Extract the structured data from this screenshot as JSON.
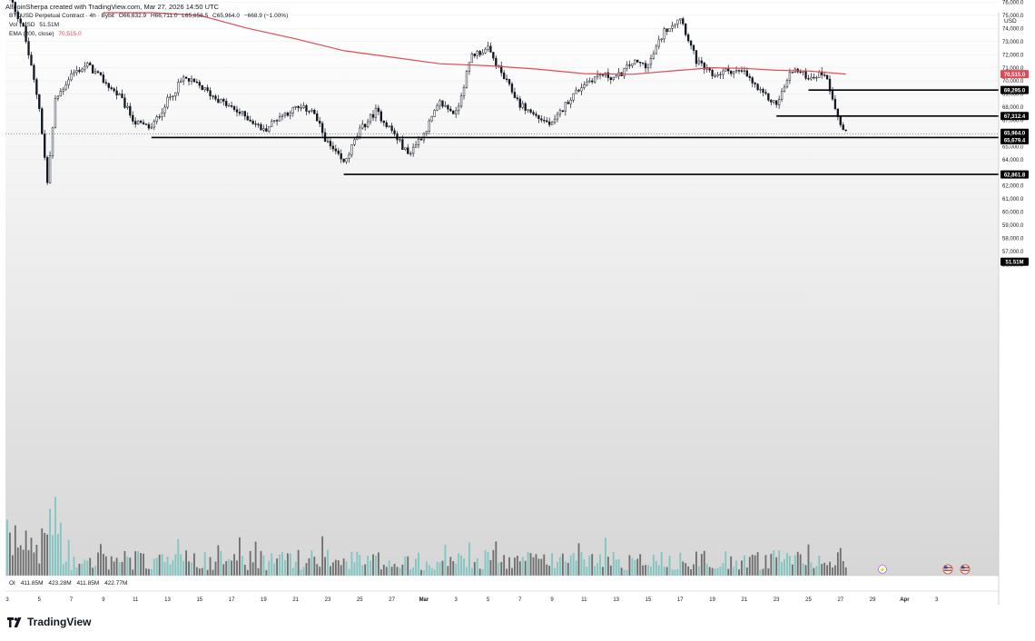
{
  "header": {
    "credit": "AltcoinSherpa created with TradingView.com, Mar 27, 2026 14:50 UTC"
  },
  "legend": {
    "symbol": "BTCUSD Perpetual Contract · 4h · Bybit",
    "open": "O66,632.9",
    "high": "H66,711.0",
    "low": "L65,658.5",
    "close": "C65,964.0",
    "change": "−668.9 (−1.00%)",
    "vol_label": "Vol · USD",
    "vol_value": "51.51M",
    "ema_label": "EMA (200, close)",
    "ema_value": "70,515.0"
  },
  "oi": {
    "label": "OI",
    "values": [
      "411.85M",
      "423.28M",
      "411.85M",
      "422.77M"
    ]
  },
  "brand": {
    "name": "TradingView"
  },
  "axis": {
    "currency": "USD"
  },
  "colors": {
    "ema": "#e04a55",
    "candle": "#131722",
    "volume_up": "#7fc6c2",
    "volume_down": "#6e6e6e",
    "level_line": "#000000",
    "background_top": "#ffffff",
    "background_bottom": "#d8d8d8"
  },
  "chart_data": {
    "type": "candlestick",
    "ylim": [
      55500,
      77500
    ],
    "y_ticks": [
      56000,
      57000,
      58000,
      59000,
      60000,
      61000,
      62000,
      63000,
      64000,
      65000,
      66000,
      67000,
      68000,
      69000,
      70000,
      71000,
      72000,
      73000,
      74000,
      75000,
      76000
    ],
    "x_ticks": [
      "3",
      "5",
      "7",
      "9",
      "11",
      "13",
      "15",
      "17",
      "19",
      "21",
      "23",
      "25",
      "27",
      "Mar",
      "3",
      "5",
      "7",
      "9",
      "11",
      "13",
      "15",
      "17",
      "19",
      "21",
      "23",
      "25",
      "27",
      "29",
      "Apr",
      "3"
    ],
    "price_path": [
      [
        "Feb 3",
        76800
      ],
      [
        "Feb 4",
        74000
      ],
      [
        "Feb 5",
        68000
      ],
      [
        "Feb 5 12h",
        62200
      ],
      [
        "Feb 6",
        68500
      ],
      [
        "Feb 7",
        70500
      ],
      [
        "Feb 8",
        71200
      ],
      [
        "Feb 9",
        70000
      ],
      [
        "Feb 10",
        68800
      ],
      [
        "Feb 11",
        66800
      ],
      [
        "Feb 12",
        66400
      ],
      [
        "Feb 13",
        68500
      ],
      [
        "Feb 14",
        70200
      ],
      [
        "Feb 15",
        69600
      ],
      [
        "Feb 16",
        68700
      ],
      [
        "Feb 17",
        67900
      ],
      [
        "Feb 18",
        67200
      ],
      [
        "Feb 19",
        66200
      ],
      [
        "Feb 20",
        67300
      ],
      [
        "Feb 21",
        67900
      ],
      [
        "Feb 22",
        67800
      ],
      [
        "Feb 23",
        65200
      ],
      [
        "Feb 24",
        63700
      ],
      [
        "Feb 25",
        66200
      ],
      [
        "Feb 26",
        67700
      ],
      [
        "Feb 27",
        66200
      ],
      [
        "Feb 28",
        64400
      ],
      [
        "Mar 1",
        66000
      ],
      [
        "Mar 2",
        68300
      ],
      [
        "Mar 3",
        67500
      ],
      [
        "Mar 4",
        72000
      ],
      [
        "Mar 5",
        72400
      ],
      [
        "Mar 6",
        70200
      ],
      [
        "Mar 7",
        68200
      ],
      [
        "Mar 8",
        67300
      ],
      [
        "Mar 9",
        66600
      ],
      [
        "Mar 10",
        68500
      ],
      [
        "Mar 11",
        69800
      ],
      [
        "Mar 12",
        70500
      ],
      [
        "Mar 13",
        70200
      ],
      [
        "Mar 14",
        71400
      ],
      [
        "Mar 15",
        71200
      ],
      [
        "Mar 16",
        73800
      ],
      [
        "Mar 17",
        74900
      ],
      [
        "Mar 18",
        71500
      ],
      [
        "Mar 19",
        70400
      ],
      [
        "Mar 20",
        70800
      ],
      [
        "Mar 21",
        70600
      ],
      [
        "Mar 22",
        69100
      ],
      [
        "Mar 23",
        68200
      ],
      [
        "Mar 24",
        70900
      ],
      [
        "Mar 25",
        70300
      ],
      [
        "Mar 26",
        70600
      ],
      [
        "Mar 26 12h",
        68800
      ],
      [
        "Mar 27",
        66600
      ],
      [
        "Mar 27 8h",
        65964
      ]
    ],
    "ema_path": [
      [
        "Feb 9",
        77500
      ],
      [
        "Feb 12",
        76000
      ],
      [
        "Feb 15",
        75000
      ],
      [
        "Feb 18",
        74000
      ],
      [
        "Feb 21",
        73200
      ],
      [
        "Feb 24",
        72300
      ],
      [
        "Feb 27",
        71800
      ],
      [
        "Mar 2",
        71300
      ],
      [
        "Mar 5",
        71150
      ],
      [
        "Mar 8",
        70900
      ],
      [
        "Mar 11",
        70550
      ],
      [
        "Mar 14",
        70500
      ],
      [
        "Mar 17",
        70800
      ],
      [
        "Mar 19",
        71000
      ],
      [
        "Mar 21",
        70950
      ],
      [
        "Mar 23",
        70800
      ],
      [
        "Mar 25",
        70750
      ],
      [
        "Mar 27 8h",
        70515
      ]
    ],
    "horizontal_levels": [
      {
        "from": "Feb 12",
        "value": 65679.4,
        "label": "65,679.4"
      },
      {
        "from": "Feb 24",
        "value": 62861.8,
        "label": "62,861.8"
      },
      {
        "from": "Mar 23",
        "value": 67312.4,
        "label": "67,312.4"
      },
      {
        "from": "Mar 25",
        "value": 69295.0,
        "label": "69,295.0"
      }
    ],
    "price_labels": [
      {
        "value": 70515.0,
        "label": "70,515.0",
        "kind": "ema"
      },
      {
        "value": 69295.0,
        "label": "69,295.0",
        "kind": "level"
      },
      {
        "value": 67312.4,
        "label": "67,312.4",
        "kind": "level"
      },
      {
        "value": 65964.0,
        "label": "65,964.0",
        "kind": "last"
      },
      {
        "value": 65964.0,
        "label": "01:09:26",
        "kind": "countdown"
      },
      {
        "value": 65679.4,
        "label": "65,679.4",
        "kind": "level"
      },
      {
        "value": 62861.8,
        "label": "62,861.8",
        "kind": "level"
      },
      {
        "value": 56200,
        "label": "51.51M",
        "kind": "volume"
      }
    ]
  }
}
